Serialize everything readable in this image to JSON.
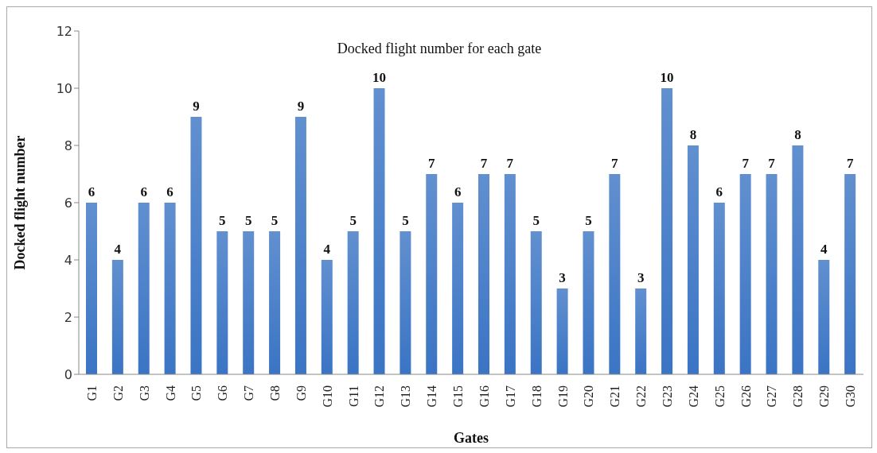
{
  "chart_data": {
    "type": "bar",
    "title": "Docked flight number for each gate",
    "xlabel": "Gates",
    "ylabel": "Docked flight number",
    "categories": [
      "G1",
      "G2",
      "G3",
      "G4",
      "G5",
      "G6",
      "G7",
      "G8",
      "G9",
      "G10",
      "G11",
      "G12",
      "G13",
      "G14",
      "G15",
      "G16",
      "G17",
      "G18",
      "G19",
      "G20",
      "G21",
      "G22",
      "G23",
      "G24",
      "G25",
      "G26",
      "G27",
      "G28",
      "G29",
      "G30"
    ],
    "values": [
      6,
      4,
      6,
      6,
      9,
      5,
      5,
      5,
      9,
      4,
      5,
      10,
      5,
      7,
      6,
      7,
      7,
      5,
      3,
      5,
      7,
      3,
      10,
      8,
      6,
      7,
      7,
      8,
      4,
      7
    ],
    "color": "#3a74c4",
    "ylim": [
      0,
      12
    ],
    "yticks": [
      0,
      2,
      4,
      6,
      8,
      10,
      12
    ],
    "grid": false,
    "data_labels": true
  }
}
